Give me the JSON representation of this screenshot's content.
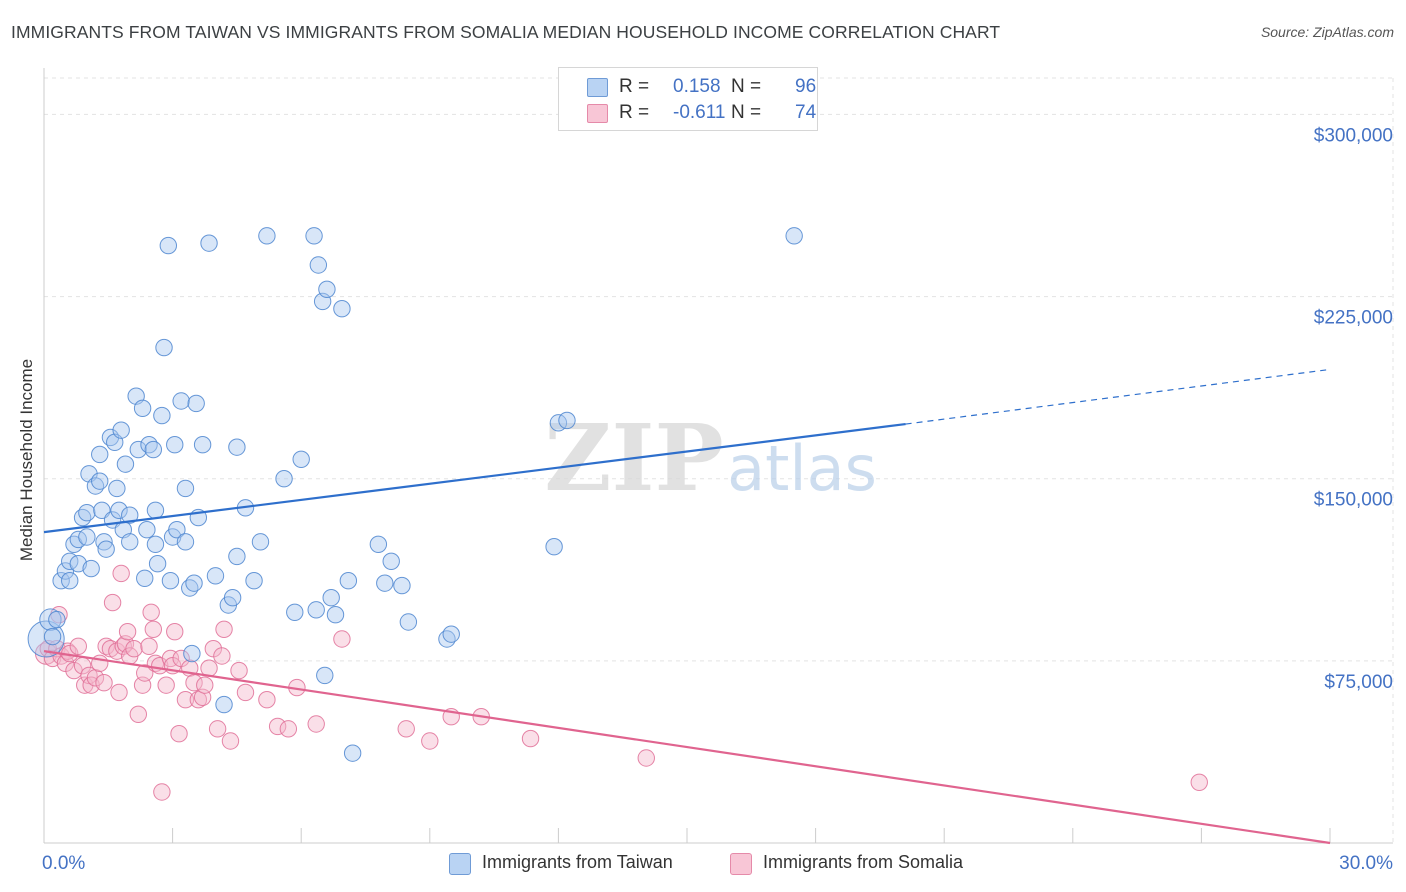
{
  "title": "IMMIGRANTS FROM TAIWAN VS IMMIGRANTS FROM SOMALIA MEDIAN HOUSEHOLD INCOME CORRELATION CHART",
  "source": "Source: ZipAtlas.com",
  "watermark": {
    "zip": "ZIP",
    "atlas": "atlas"
  },
  "legend": {
    "rows": [
      {
        "r_label": "R =",
        "r_value": "0.158",
        "n_label": "N =",
        "n_value": "96"
      },
      {
        "r_label": "R =",
        "r_value": "-0.611",
        "n_label": "N =",
        "n_value": "74"
      }
    ]
  },
  "bottom_legend": {
    "taiwan": "Immigrants from Taiwan",
    "somalia": "Immigrants from Somalia"
  },
  "colors": {
    "taiwan_fill": "#a9c8ef",
    "taiwan_stroke": "#4d86d0",
    "taiwan_line": "#2e6fcc",
    "somalia_fill": "#f5b8cc",
    "somalia_stroke": "#e07098",
    "somalia_line": "#e0648f",
    "axis_label": "#4472c4",
    "grid": "#e3e3e3"
  },
  "chart_data": {
    "type": "scatter",
    "title": "IMMIGRANTS FROM TAIWAN VS IMMIGRANTS FROM SOMALIA MEDIAN HOUSEHOLD INCOME CORRELATION CHART",
    "xlabel": "",
    "ylabel": "Median Household Income",
    "xlim": [
      0,
      30
    ],
    "ylim": [
      0,
      315000
    ],
    "x_tick_labels": [
      "0.0%",
      "30.0%"
    ],
    "y_ticks": [
      75000,
      150000,
      225000,
      300000
    ],
    "y_tick_labels": [
      "$75,000",
      "$150,000",
      "$225,000",
      "$300,000"
    ],
    "grid": true,
    "legend_position": "top-center",
    "series": [
      {
        "name": "Immigrants from Taiwan",
        "r": 0.158,
        "n": 96,
        "trend": {
          "x0": 0,
          "y0": 128000,
          "x1": 20.1,
          "y1": 172500,
          "dashed_to_x": 30,
          "dashed_to_y": 195000
        },
        "points": [
          [
            0.05,
            84000,
            2.2
          ],
          [
            0.15,
            92000,
            1.3
          ],
          [
            0.2,
            85000,
            1.0
          ],
          [
            0.3,
            92000,
            1.0
          ],
          [
            0.4,
            108000,
            1.0
          ],
          [
            0.5,
            112000,
            1.0
          ],
          [
            0.6,
            116000,
            1.0
          ],
          [
            0.6,
            108000,
            1.0
          ],
          [
            0.7,
            123000,
            1.0
          ],
          [
            0.8,
            115000,
            1.0
          ],
          [
            0.8,
            125000,
            1.0
          ],
          [
            0.9,
            134000,
            1.0
          ],
          [
            1.0,
            136000,
            1.0
          ],
          [
            1.0,
            126000,
            1.0
          ],
          [
            1.05,
            152000,
            1.0
          ],
          [
            1.1,
            113000,
            1.0
          ],
          [
            1.2,
            147000,
            1.0
          ],
          [
            1.3,
            149000,
            1.0
          ],
          [
            1.3,
            160000,
            1.0
          ],
          [
            1.35,
            137000,
            1.0
          ],
          [
            1.4,
            124000,
            1.0
          ],
          [
            1.45,
            121000,
            1.0
          ],
          [
            1.55,
            167000,
            1.0
          ],
          [
            1.6,
            133000,
            1.0
          ],
          [
            1.65,
            165000,
            1.0
          ],
          [
            1.7,
            146000,
            1.0
          ],
          [
            1.75,
            137000,
            1.0
          ],
          [
            1.8,
            170000,
            1.0
          ],
          [
            1.85,
            129000,
            1.0
          ],
          [
            1.9,
            156000,
            1.0
          ],
          [
            2.0,
            135000,
            1.0
          ],
          [
            2.0,
            124000,
            1.0
          ],
          [
            2.15,
            184000,
            1.0
          ],
          [
            2.2,
            162000,
            1.0
          ],
          [
            2.3,
            179000,
            1.0
          ],
          [
            2.35,
            109000,
            1.0
          ],
          [
            2.4,
            129000,
            1.0
          ],
          [
            2.45,
            164000,
            1.0
          ],
          [
            2.55,
            162000,
            1.0
          ],
          [
            2.6,
            123000,
            1.0
          ],
          [
            2.6,
            137000,
            1.0
          ],
          [
            2.65,
            115000,
            1.0
          ],
          [
            2.75,
            176000,
            1.0
          ],
          [
            2.8,
            204000,
            1.0
          ],
          [
            2.9,
            246000,
            1.0
          ],
          [
            2.95,
            108000,
            1.0
          ],
          [
            3.0,
            126000,
            1.0
          ],
          [
            3.05,
            164000,
            1.0
          ],
          [
            3.1,
            129000,
            1.0
          ],
          [
            3.2,
            182000,
            1.0
          ],
          [
            3.3,
            146000,
            1.0
          ],
          [
            3.3,
            124000,
            1.0
          ],
          [
            3.4,
            105000,
            1.0
          ],
          [
            3.45,
            78000,
            1.0
          ],
          [
            3.5,
            107000,
            1.0
          ],
          [
            3.55,
            181000,
            1.0
          ],
          [
            3.6,
            134000,
            1.0
          ],
          [
            3.7,
            164000,
            1.0
          ],
          [
            3.85,
            247000,
            1.0
          ],
          [
            4.0,
            110000,
            1.0
          ],
          [
            4.2,
            57000,
            1.0
          ],
          [
            4.3,
            98000,
            1.0
          ],
          [
            4.4,
            101000,
            1.0
          ],
          [
            4.5,
            163000,
            1.0
          ],
          [
            4.5,
            118000,
            1.0
          ],
          [
            4.7,
            138000,
            1.0
          ],
          [
            4.9,
            108000,
            1.0
          ],
          [
            5.05,
            124000,
            1.0
          ],
          [
            5.2,
            250000,
            1.0
          ],
          [
            5.6,
            150000,
            1.0
          ],
          [
            5.85,
            95000,
            1.0
          ],
          [
            6.0,
            158000,
            1.0
          ],
          [
            6.3,
            250000,
            1.0
          ],
          [
            6.35,
            96000,
            1.0
          ],
          [
            6.4,
            238000,
            1.0
          ],
          [
            6.5,
            223000,
            1.0
          ],
          [
            6.55,
            69000,
            1.0
          ],
          [
            6.6,
            228000,
            1.0
          ],
          [
            6.7,
            101000,
            1.0
          ],
          [
            6.8,
            94000,
            1.0
          ],
          [
            6.95,
            220000,
            1.0
          ],
          [
            7.1,
            108000,
            1.0
          ],
          [
            7.2,
            37000,
            1.0
          ],
          [
            7.8,
            123000,
            1.0
          ],
          [
            7.95,
            107000,
            1.0
          ],
          [
            8.1,
            116000,
            1.0
          ],
          [
            8.35,
            106000,
            1.0
          ],
          [
            8.5,
            91000,
            1.0
          ],
          [
            9.4,
            84000,
            1.0
          ],
          [
            9.5,
            86000,
            1.0
          ],
          [
            11.9,
            122000,
            1.0
          ],
          [
            12.0,
            173000,
            1.0
          ],
          [
            12.2,
            174000,
            1.0
          ],
          [
            17.5,
            250000,
            1.0
          ]
        ]
      },
      {
        "name": "Immigrants from Somalia",
        "r": -0.611,
        "n": 74,
        "trend": {
          "x0": 0,
          "y0": 79000,
          "x1": 30,
          "y1": 0
        },
        "points": [
          [
            0.05,
            78000,
            1.3
          ],
          [
            0.1,
            80000,
            1.0
          ],
          [
            0.2,
            76000,
            1.0
          ],
          [
            0.3,
            80000,
            1.0
          ],
          [
            0.35,
            94000,
            1.0
          ],
          [
            0.4,
            77000,
            1.0
          ],
          [
            0.5,
            74000,
            1.0
          ],
          [
            0.55,
            79000,
            1.0
          ],
          [
            0.6,
            78000,
            1.0
          ],
          [
            0.7,
            71000,
            1.0
          ],
          [
            0.8,
            81000,
            1.0
          ],
          [
            0.9,
            73000,
            1.0
          ],
          [
            0.95,
            65000,
            1.0
          ],
          [
            1.05,
            69000,
            1.0
          ],
          [
            1.1,
            65000,
            1.0
          ],
          [
            1.2,
            68000,
            1.0
          ],
          [
            1.3,
            74000,
            1.0
          ],
          [
            1.4,
            66000,
            1.0
          ],
          [
            1.45,
            81000,
            1.0
          ],
          [
            1.55,
            80000,
            1.0
          ],
          [
            1.6,
            99000,
            1.0
          ],
          [
            1.7,
            79000,
            1.0
          ],
          [
            1.75,
            62000,
            1.0
          ],
          [
            1.8,
            111000,
            1.0
          ],
          [
            1.85,
            81000,
            1.0
          ],
          [
            1.9,
            82000,
            1.0
          ],
          [
            1.95,
            87000,
            1.0
          ],
          [
            2.0,
            77000,
            1.0
          ],
          [
            2.1,
            80000,
            1.0
          ],
          [
            2.2,
            53000,
            1.0
          ],
          [
            2.3,
            65000,
            1.0
          ],
          [
            2.35,
            70000,
            1.0
          ],
          [
            2.45,
            81000,
            1.0
          ],
          [
            2.5,
            95000,
            1.0
          ],
          [
            2.55,
            88000,
            1.0
          ],
          [
            2.6,
            74000,
            1.0
          ],
          [
            2.7,
            73000,
            1.0
          ],
          [
            2.75,
            21000,
            1.0
          ],
          [
            2.85,
            65000,
            1.0
          ],
          [
            2.95,
            76000,
            1.0
          ],
          [
            3.0,
            73000,
            1.0
          ],
          [
            3.05,
            87000,
            1.0
          ],
          [
            3.15,
            45000,
            1.0
          ],
          [
            3.2,
            76000,
            1.0
          ],
          [
            3.3,
            59000,
            1.0
          ],
          [
            3.4,
            72000,
            1.0
          ],
          [
            3.5,
            66000,
            1.0
          ],
          [
            3.6,
            59000,
            1.0
          ],
          [
            3.7,
            60000,
            1.0
          ],
          [
            3.75,
            65000,
            1.0
          ],
          [
            3.85,
            72000,
            1.0
          ],
          [
            3.95,
            80000,
            1.0
          ],
          [
            4.05,
            47000,
            1.0
          ],
          [
            4.15,
            77000,
            1.0
          ],
          [
            4.2,
            88000,
            1.0
          ],
          [
            4.35,
            42000,
            1.0
          ],
          [
            4.55,
            71000,
            1.0
          ],
          [
            4.7,
            62000,
            1.0
          ],
          [
            5.2,
            59000,
            1.0
          ],
          [
            5.45,
            48000,
            1.0
          ],
          [
            5.7,
            47000,
            1.0
          ],
          [
            5.9,
            64000,
            1.0
          ],
          [
            6.35,
            49000,
            1.0
          ],
          [
            6.95,
            84000,
            1.0
          ],
          [
            8.45,
            47000,
            1.0
          ],
          [
            9.0,
            42000,
            1.0
          ],
          [
            9.5,
            52000,
            1.0
          ],
          [
            10.2,
            52000,
            1.0
          ],
          [
            11.35,
            43000,
            1.0
          ],
          [
            14.05,
            35000,
            1.0
          ],
          [
            26.95,
            25000,
            1.0
          ]
        ]
      }
    ]
  }
}
